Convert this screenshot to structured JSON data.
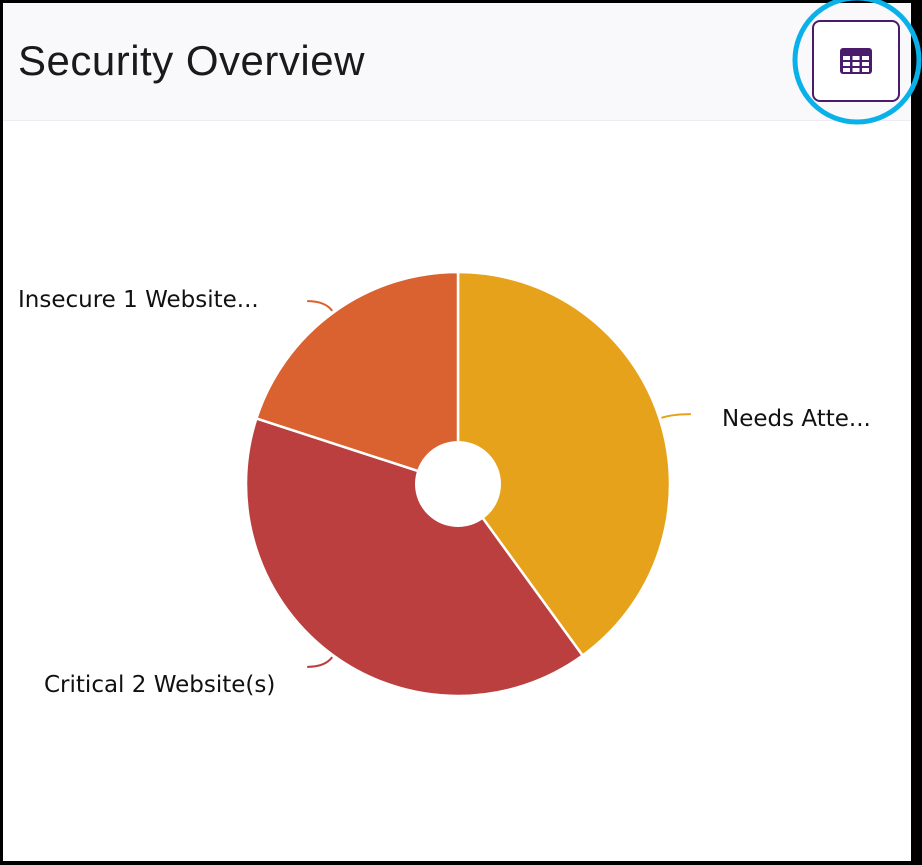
{
  "header": {
    "title": "Security Overview",
    "table_view_icon": "table-grid-icon"
  },
  "highlight_color": "#0ab0e8",
  "chart_data": {
    "type": "pie",
    "style": "donut-small-hole",
    "categories": [
      "Needs Attention",
      "Critical",
      "Insecure"
    ],
    "values": [
      2,
      2,
      1
    ],
    "labels": [
      "Needs Atte...",
      "Critical 2 Website(s)",
      "Insecure 1 Website..."
    ],
    "colors": [
      "#e6a21a",
      "#ba3f3e",
      "#d96230"
    ]
  }
}
